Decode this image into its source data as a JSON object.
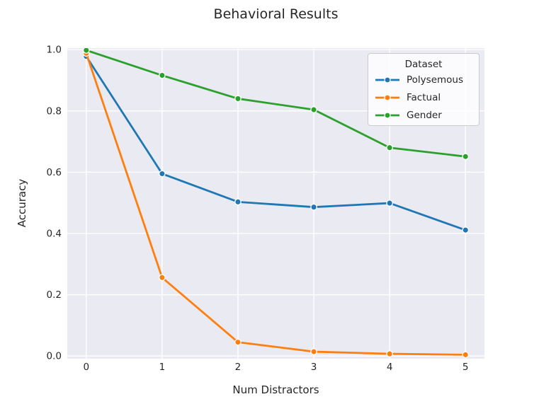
{
  "title": "Behavioral Results",
  "colors": {
    "text": "#262626",
    "plot_background": "#eaeaf2",
    "grid": "#ffffff",
    "legend_border": "#cccccc",
    "marker_edge": "#ffffff"
  },
  "chart_data": {
    "type": "line",
    "title": "Behavioral Results",
    "xlabel": "Num Distractors",
    "ylabel": "Accuracy",
    "x": [
      0,
      1,
      2,
      3,
      4,
      5
    ],
    "series": [
      {
        "name": "Polysemous",
        "color": "#1f77b4",
        "values": [
          0.978,
          0.595,
          0.503,
          0.486,
          0.499,
          0.411
        ]
      },
      {
        "name": "Factual",
        "color": "#ff7f0e",
        "values": [
          0.988,
          0.256,
          0.045,
          0.014,
          0.007,
          0.004
        ]
      },
      {
        "name": "Gender",
        "color": "#2ca02c",
        "values": [
          0.998,
          0.916,
          0.84,
          0.804,
          0.68,
          0.651
        ]
      }
    ],
    "xticks": [
      "0",
      "1",
      "2",
      "3",
      "4",
      "5"
    ],
    "yticks": [
      "0.0",
      "0.2",
      "0.4",
      "0.6",
      "0.8",
      "1.0"
    ],
    "xlim": [
      -0.25,
      5.25
    ],
    "ylim": [
      -0.009,
      1.005
    ],
    "grid": true,
    "marker": "o",
    "line_style": "solid",
    "legend": {
      "title": "Dataset",
      "position": "upper right",
      "entries": [
        "Polysemous",
        "Factual",
        "Gender"
      ]
    }
  }
}
